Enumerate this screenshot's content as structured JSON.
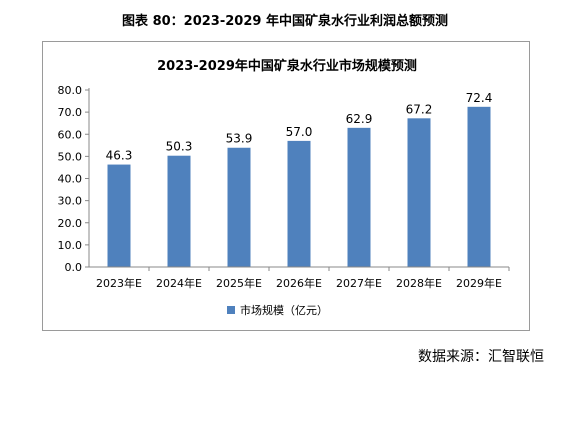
{
  "caption": "图表 80：2023-2029 年中国矿泉水行业利润总额预测",
  "source": "数据来源：汇智联恒",
  "chart_data": {
    "type": "bar",
    "title": "2023-2029年中国矿泉水行业市场规模预测",
    "categories": [
      "2023年E",
      "2024年E",
      "2025年E",
      "2026年E",
      "2027年E",
      "2028年E",
      "2029年E"
    ],
    "series": [
      {
        "name": "市场规模（亿元）",
        "values": [
          46.3,
          50.3,
          53.9,
          57.0,
          62.9,
          67.2,
          72.4
        ]
      }
    ],
    "data_labels": [
      "46.3",
      "50.3",
      "53.9",
      "57.0",
      "62.9",
      "67.2",
      "72.4"
    ],
    "yticks": [
      "0.0",
      "10.0",
      "20.0",
      "30.0",
      "40.0",
      "50.0",
      "60.0",
      "70.0",
      "80.0"
    ],
    "ylim": [
      0,
      80
    ],
    "xlabel": "",
    "ylabel": "",
    "grid": false,
    "legend": "bottom",
    "bar_color": "#4f81bd",
    "axis_color": "#888888"
  }
}
